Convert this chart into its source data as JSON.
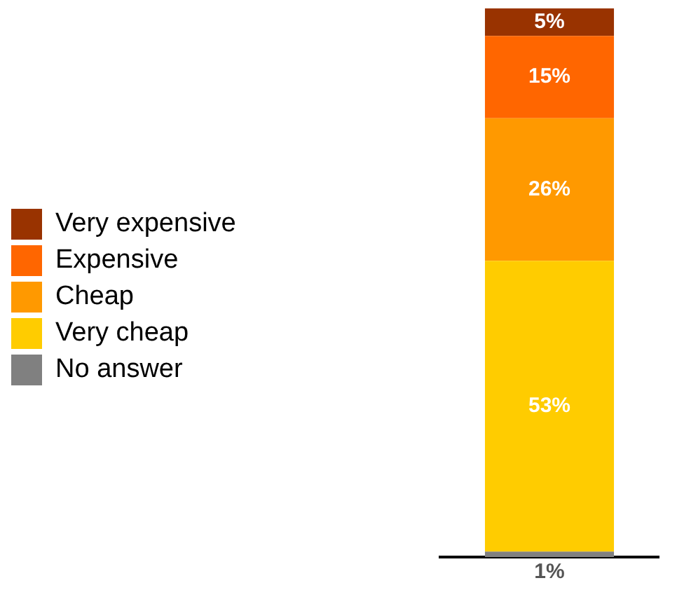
{
  "chart_data": {
    "type": "bar",
    "stacked": true,
    "categories": [
      null
    ],
    "series": [
      {
        "name": "No answer",
        "color": "#808080",
        "values": [
          1
        ],
        "value_labels": [
          "1%"
        ]
      },
      {
        "name": "Very cheap",
        "color": "#ffcc00",
        "values": [
          53
        ],
        "value_labels": [
          "53%"
        ]
      },
      {
        "name": "Cheap",
        "color": "#ff9900",
        "values": [
          26
        ],
        "value_labels": [
          "26%"
        ]
      },
      {
        "name": "Expensive",
        "color": "#ff6600",
        "values": [
          15
        ],
        "value_labels": [
          "15%"
        ]
      },
      {
        "name": "Very expensive",
        "color": "#993300",
        "values": [
          5
        ],
        "value_labels": [
          "5%"
        ]
      }
    ],
    "ylim": [
      0,
      100
    ],
    "grid": false,
    "legend": "left"
  }
}
